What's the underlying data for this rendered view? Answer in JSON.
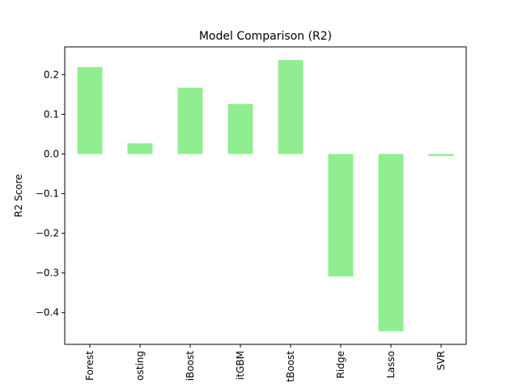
{
  "chart_data": {
    "type": "bar",
    "title": "Model Comparison (R2)",
    "xlabel": "",
    "ylabel": "R2 Score",
    "categories": [
      "Forest",
      "osting",
      "iBoost",
      "itGBM",
      "tBoost",
      "Ridge",
      "Lasso",
      "SVR"
    ],
    "values": [
      0.219,
      0.027,
      0.167,
      0.126,
      0.237,
      -0.309,
      -0.447,
      -0.005
    ],
    "ylim": [
      -0.48,
      0.27
    ],
    "yticks": [
      0.2,
      0.1,
      0.0,
      -0.1,
      -0.2,
      -0.3,
      -0.4
    ],
    "ytick_labels": [
      "0.2",
      "0.1",
      "0.0",
      "−0.1",
      "−0.2",
      "−0.3",
      "−0.4"
    ],
    "bar_color": "#90ee90",
    "grid": false,
    "legend": "none"
  }
}
